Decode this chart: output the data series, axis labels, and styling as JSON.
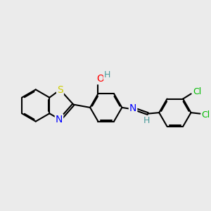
{
  "background_color": "#ebebeb",
  "bond_color": "#000000",
  "bond_width": 1.5,
  "atom_colors": {
    "S": "#cccc00",
    "N": "#0000ff",
    "O": "#ff0000",
    "Cl": "#00bb00",
    "C": "#000000",
    "H": "#4a9a9a"
  },
  "font_size": 9,
  "figsize": [
    3.0,
    3.0
  ],
  "dpi": 100
}
